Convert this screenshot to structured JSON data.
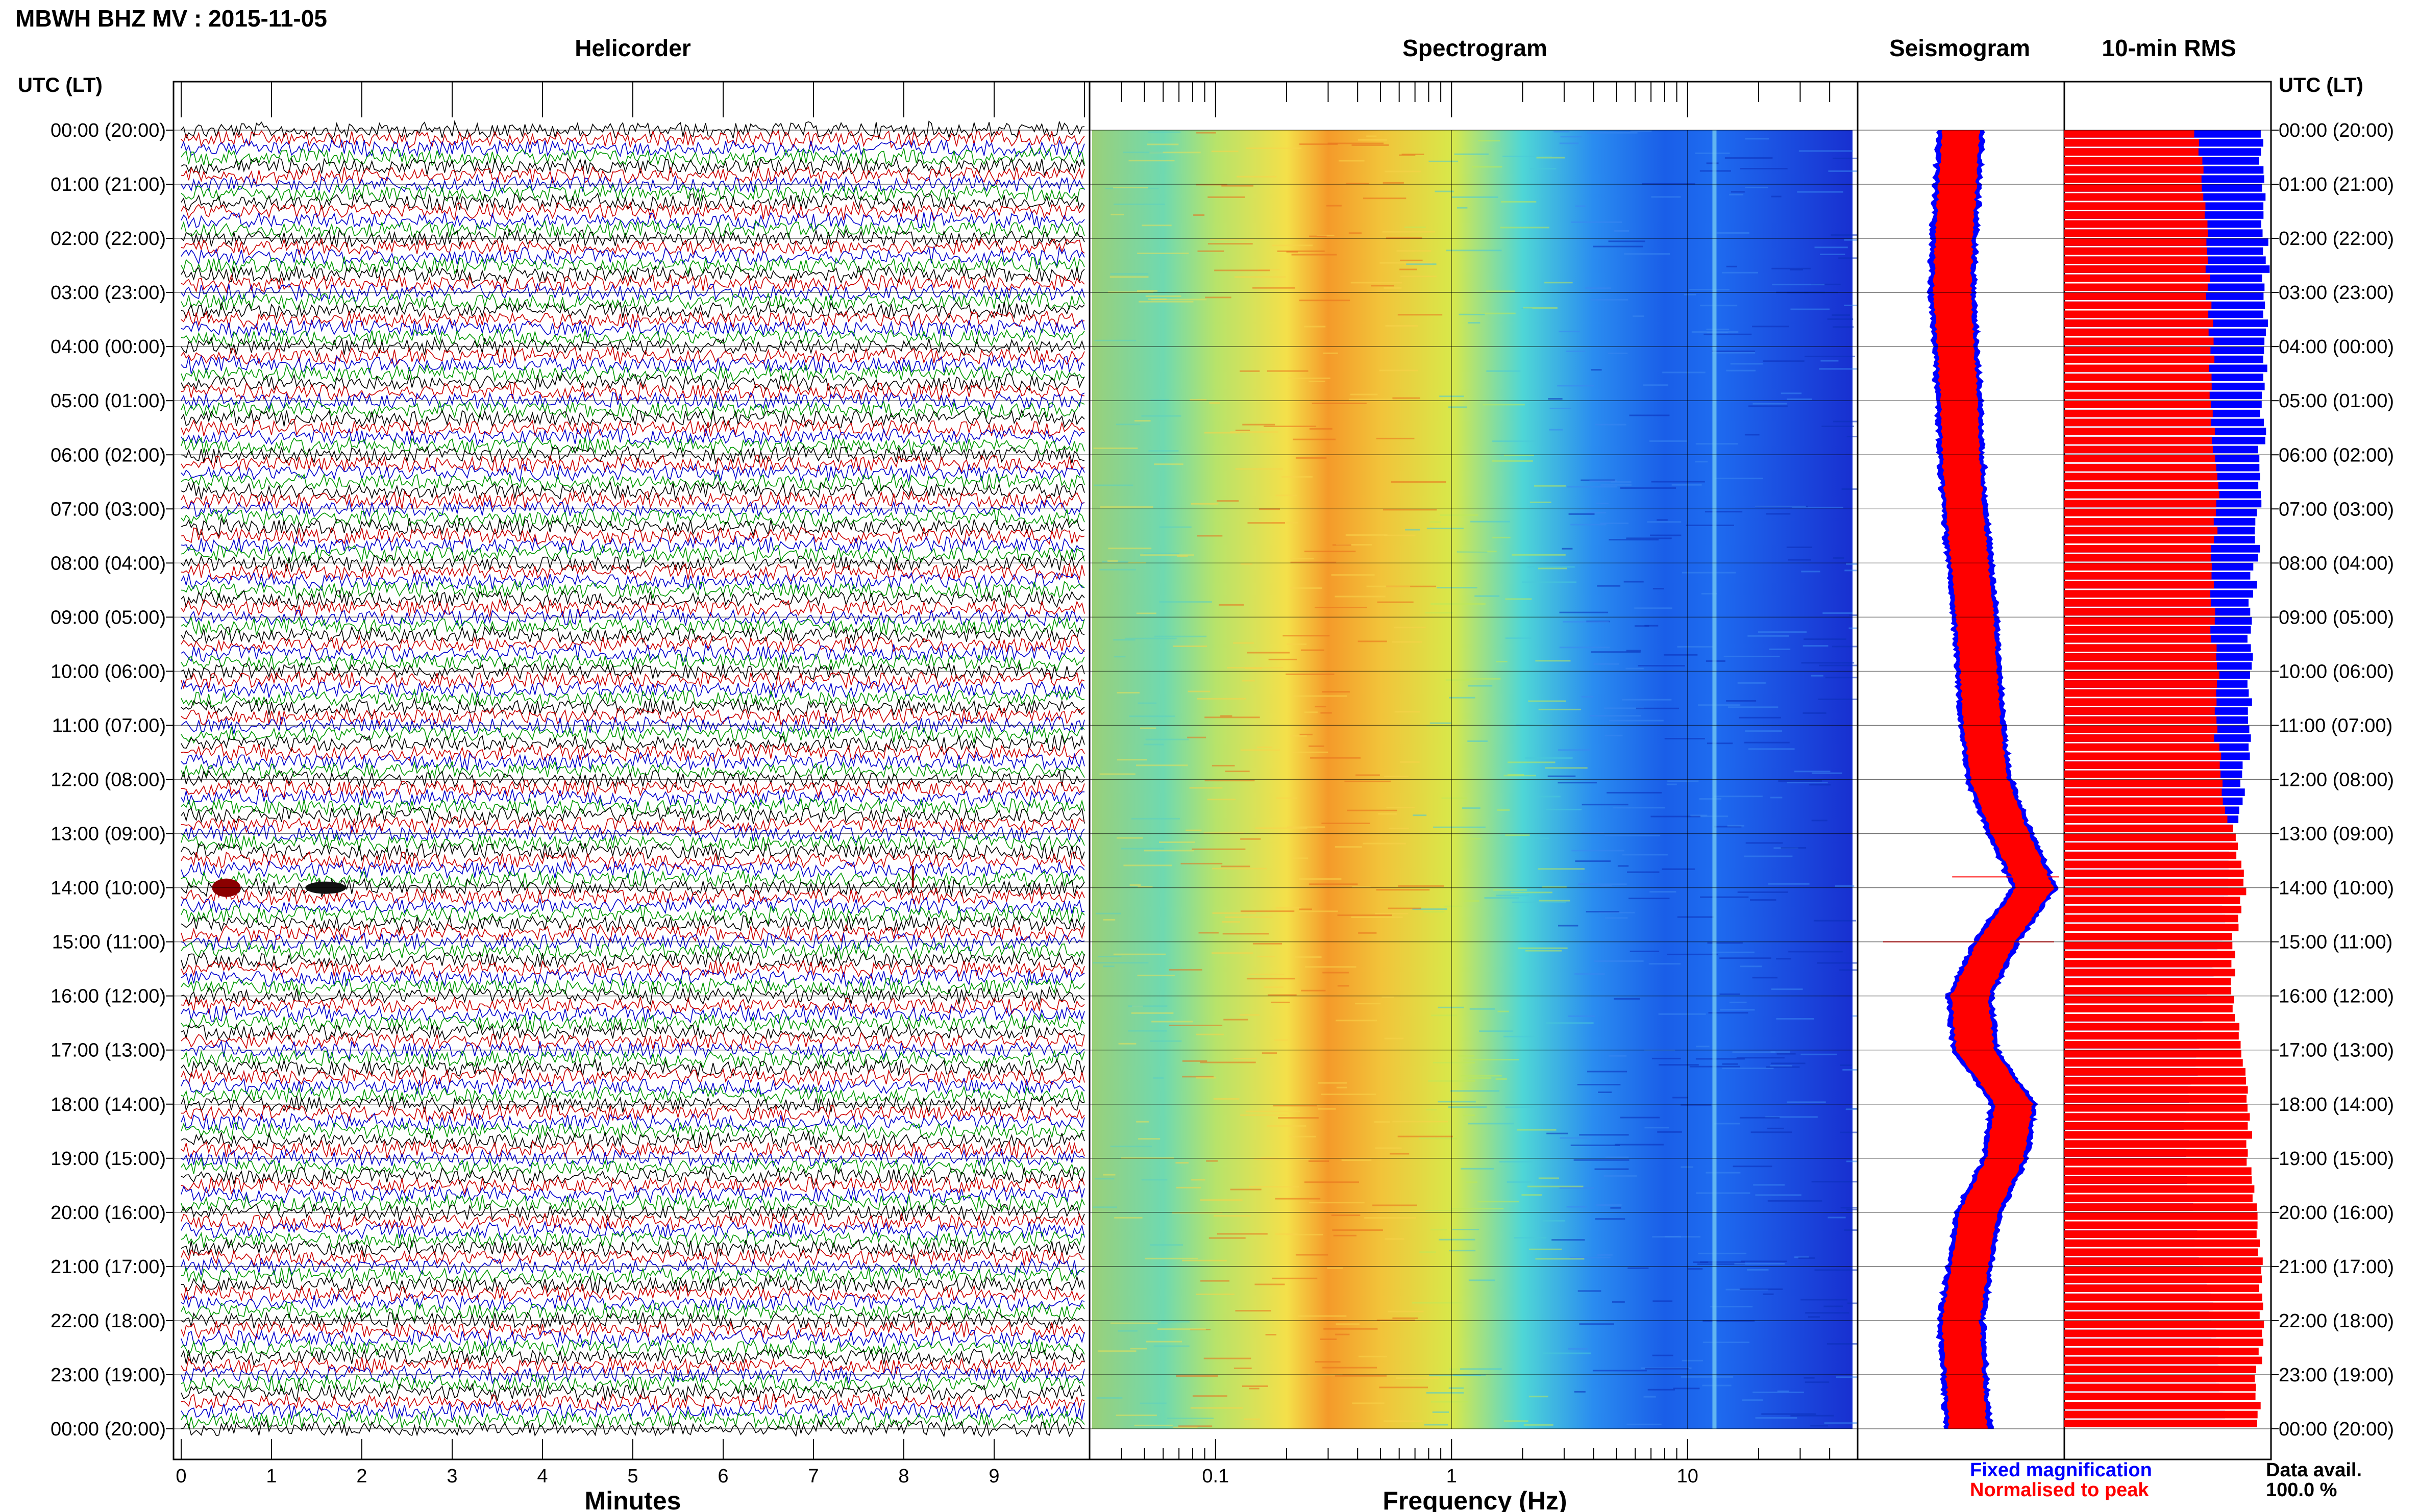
{
  "header": {
    "title": "MBWH BHZ MV : 2015-11-05"
  },
  "panels": {
    "helicorder": "Helicorder",
    "spectrogram": "Spectrogram",
    "seismogram": "Seismogram",
    "rms": "10-min RMS"
  },
  "time_header": "UTC (LT)",
  "time_labels": [
    "00:00 (20:00)",
    "01:00 (21:00)",
    "02:00 (22:00)",
    "03:00 (23:00)",
    "04:00 (00:00)",
    "05:00 (01:00)",
    "06:00 (02:00)",
    "07:00 (03:00)",
    "08:00 (04:00)",
    "09:00 (05:00)",
    "10:00 (06:00)",
    "11:00 (07:00)",
    "12:00 (08:00)",
    "13:00 (09:00)",
    "14:00 (10:00)",
    "15:00 (11:00)",
    "16:00 (12:00)",
    "17:00 (13:00)",
    "18:00 (14:00)",
    "19:00 (15:00)",
    "20:00 (16:00)",
    "21:00 (17:00)",
    "22:00 (18:00)",
    "23:00 (19:00)",
    "00:00 (20:00)"
  ],
  "x_axes": {
    "minutes_label": "Minutes",
    "minutes_ticks": [
      "0",
      "1",
      "2",
      "3",
      "4",
      "5",
      "6",
      "7",
      "8",
      "9"
    ],
    "frequency_label": "Frequency (Hz)",
    "frequency_ticks": [
      "0.1",
      "1",
      "10"
    ]
  },
  "legend": {
    "fixed": "Fixed magnification",
    "normalised": "Normalised to peak",
    "data_avail_label": "Data avail.",
    "data_avail_value": "100.0 %"
  },
  "colors": {
    "trace_cycle": [
      "#000000",
      "#cc0000",
      "#0000cc",
      "#009900"
    ],
    "fixed": "#0000ff",
    "normalised": "#ff0000",
    "grid": "#000000"
  },
  "chart_data": {
    "type": "helicorder",
    "minutes_range": [
      0,
      10
    ],
    "frequency_range_hz": [
      0.03,
      50
    ],
    "frequency_scale": "log",
    "spectral_peak_hz": 0.3,
    "spectral_line_hz": 13,
    "seismogram_envelope_hourly": [
      0.5,
      0.48,
      0.46,
      0.45,
      0.47,
      0.49,
      0.5,
      0.52,
      0.55,
      0.58,
      0.6,
      0.62,
      0.66,
      0.78,
      0.92,
      0.7,
      0.55,
      0.58,
      0.8,
      0.75,
      0.6,
      0.55,
      0.5,
      0.52,
      0.54
    ],
    "rms_fixed_hourly": [
      0.92,
      0.94,
      0.95,
      0.96,
      0.96,
      0.95,
      0.93,
      0.92,
      0.9,
      0.88,
      0.88,
      0.88,
      0.85,
      0.8,
      0.78,
      0.72,
      0.68,
      0.62,
      0.58,
      0.56,
      0.6,
      0.65,
      0.7,
      0.72,
      0.75
    ],
    "rms_normalised_hourly": [
      0.62,
      0.66,
      0.68,
      0.68,
      0.7,
      0.7,
      0.72,
      0.72,
      0.7,
      0.7,
      0.72,
      0.72,
      0.74,
      0.8,
      0.86,
      0.8,
      0.8,
      0.84,
      0.88,
      0.88,
      0.92,
      0.94,
      0.94,
      0.92,
      0.93
    ],
    "data_availability_percent": 100.0
  }
}
